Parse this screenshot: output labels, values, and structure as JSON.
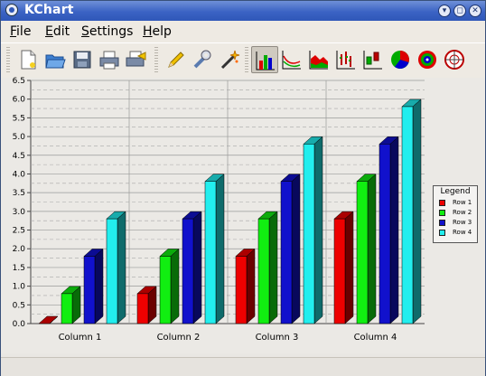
{
  "window": {
    "title": "KChart"
  },
  "title_buttons": [
    {
      "name": "minimize",
      "glyph": "▾"
    },
    {
      "name": "restore",
      "glyph": "◻"
    },
    {
      "name": "close",
      "glyph": "✕"
    }
  ],
  "menu": [
    {
      "label": "File",
      "key": "F",
      "rest": "ile"
    },
    {
      "label": "Edit",
      "key": "E",
      "rest": "dit"
    },
    {
      "label": "Settings",
      "key": "S",
      "rest": "ettings"
    },
    {
      "label": "Help",
      "key": "H",
      "rest": "elp"
    }
  ],
  "toolbar": {
    "buttons": [
      {
        "icon": "new-document-icon"
      },
      {
        "icon": "open-folder-icon"
      },
      {
        "icon": "save-icon"
      },
      {
        "icon": "print-icon"
      },
      {
        "icon": "print-preview-icon"
      },
      {
        "icon": "edit-data-icon"
      },
      {
        "icon": "configure-icon"
      },
      {
        "icon": "wizard-icon"
      },
      {
        "icon": "bar-chart-icon",
        "active": true
      },
      {
        "icon": "line-chart-icon"
      },
      {
        "icon": "area-chart-icon"
      },
      {
        "icon": "high-low-chart-icon"
      },
      {
        "icon": "box-whisker-chart-icon"
      },
      {
        "icon": "pie-chart-icon"
      },
      {
        "icon": "ring-chart-icon"
      },
      {
        "icon": "polar-chart-icon"
      }
    ]
  },
  "colors": {
    "row1": "#ee0000",
    "row2": "#11ee11",
    "row3": "#1111cc",
    "row4": "#22eeee"
  },
  "chart_data": {
    "type": "bar",
    "bar_style": "3d",
    "categories": [
      "Column 1",
      "Column 2",
      "Column 3",
      "Column 4"
    ],
    "series": [
      {
        "name": "Row 1",
        "color": "#ee0000",
        "values": [
          0.0,
          0.8,
          1.8,
          2.8
        ]
      },
      {
        "name": "Row 2",
        "color": "#11ee11",
        "values": [
          0.8,
          1.8,
          2.8,
          3.8
        ]
      },
      {
        "name": "Row 3",
        "color": "#1111cc",
        "values": [
          1.8,
          2.8,
          3.8,
          4.8
        ]
      },
      {
        "name": "Row 4",
        "color": "#22eeee",
        "values": [
          2.8,
          3.8,
          4.8,
          5.8
        ]
      }
    ],
    "ylim": [
      0,
      6.5
    ],
    "yticks": [
      "0.0",
      "0.5",
      "1.0",
      "1.5",
      "2.0",
      "2.5",
      "3.0",
      "3.5",
      "4.0",
      "4.5",
      "5.0",
      "5.5",
      "6.0",
      "6.5"
    ],
    "grid": true,
    "legend": {
      "title": "Legend",
      "placement": "right"
    }
  }
}
